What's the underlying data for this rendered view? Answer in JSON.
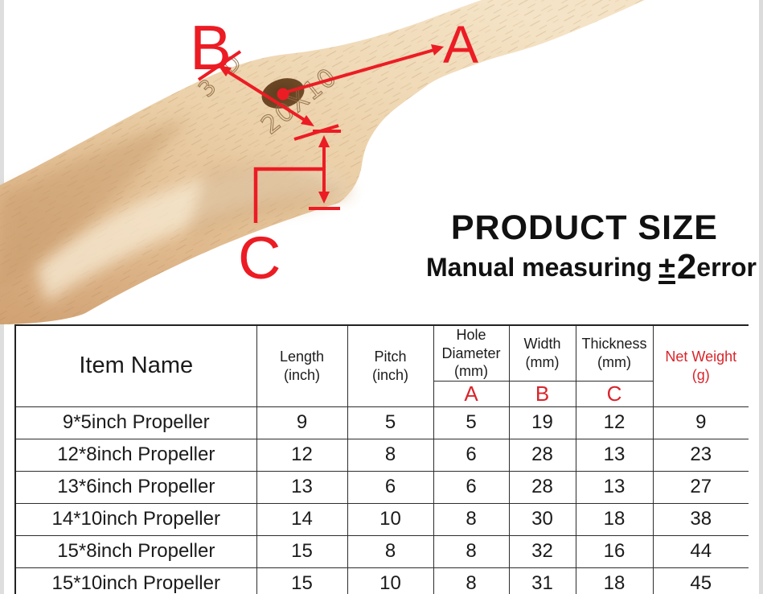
{
  "colors": {
    "annotation_red": "#ec1c24",
    "table_red": "#d9252b",
    "table_border": "#2d2d2d",
    "wood_light": "#f2dfc2",
    "wood_mid": "#e6c69c",
    "wood_dark": "#d2a678",
    "hole_brown": "#6b4726"
  },
  "annotation": {
    "label_a": "A",
    "label_b": "B",
    "label_c": "C",
    "engraving_small": "3 D",
    "engraving_size": "20X10"
  },
  "title": {
    "heading": "PRODUCT SIZE",
    "subtitle_prefix": "Manual measuring",
    "subtitle_pm": "±",
    "subtitle_tolerance": "2",
    "subtitle_suffix": "error"
  },
  "table": {
    "header": {
      "item_name": "Item Name",
      "length": [
        "Length",
        "(inch)"
      ],
      "pitch": [
        "Pitch",
        "(inch)"
      ],
      "hole": [
        "Hole",
        "Diameter",
        "(mm)"
      ],
      "width": [
        "Width",
        "(mm)"
      ],
      "thickness": [
        "Thickness",
        "(mm)"
      ],
      "net_weight": [
        "Net Weight",
        "(g)"
      ],
      "sub_a": "A",
      "sub_b": "B",
      "sub_c": "C"
    },
    "row_keys": [
      "item",
      "length",
      "pitch",
      "hole",
      "width",
      "thickness",
      "weight"
    ],
    "rows": [
      {
        "item": "9*5inch Propeller",
        "length": "9",
        "pitch": "5",
        "hole": "5",
        "width": "19",
        "thickness": "12",
        "weight": "9"
      },
      {
        "item": "12*8inch Propeller",
        "length": "12",
        "pitch": "8",
        "hole": "6",
        "width": "28",
        "thickness": "13",
        "weight": "23"
      },
      {
        "item": "13*6inch Propeller",
        "length": "13",
        "pitch": "6",
        "hole": "6",
        "width": "28",
        "thickness": "13",
        "weight": "27"
      },
      {
        "item": "14*10inch Propeller",
        "length": "14",
        "pitch": "10",
        "hole": "8",
        "width": "30",
        "thickness": "18",
        "weight": "38"
      },
      {
        "item": "15*8inch Propeller",
        "length": "15",
        "pitch": "8",
        "hole": "8",
        "width": "32",
        "thickness": "16",
        "weight": "44"
      },
      {
        "item": "15*10inch Propeller",
        "length": "15",
        "pitch": "10",
        "hole": "8",
        "width": "31",
        "thickness": "18",
        "weight": "45"
      }
    ]
  }
}
